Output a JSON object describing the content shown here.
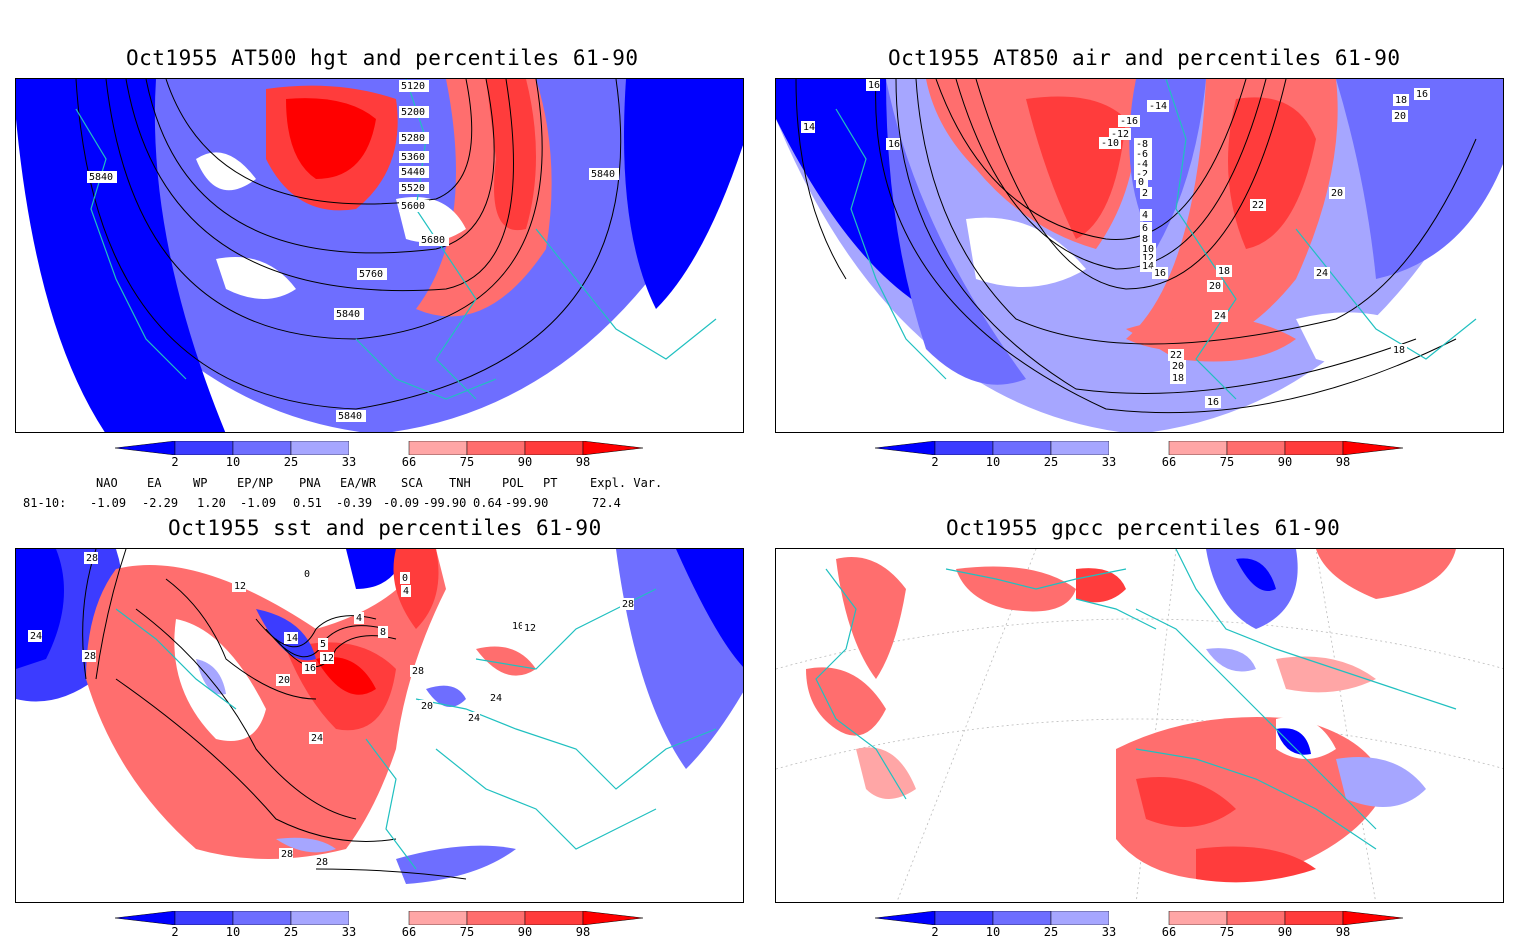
{
  "panels": [
    {
      "title": "Oct1955 AT500 hgt and percentiles 61-90",
      "contour_labels": [
        "5120",
        "5200",
        "5280",
        "5360",
        "5440",
        "5520",
        "5600",
        "5680",
        "5760",
        "5840",
        "5840",
        "5840",
        "5840",
        "5840"
      ]
    },
    {
      "title": "Oct1955 AT850 air and percentiles 61-90",
      "contour_labels": [
        "16",
        "14",
        "16",
        "-16",
        "-14",
        "-12",
        "-10",
        "-8",
        "-6",
        "-4",
        "-2",
        "0",
        "2",
        "4",
        "6",
        "8",
        "10",
        "12",
        "14",
        "16",
        "18",
        "20",
        "22",
        "24",
        "24",
        "22",
        "20",
        "18",
        "16",
        "18",
        "20",
        "20",
        "22",
        "16",
        "18"
      ]
    },
    {
      "title": "Oct1955 sst and percentiles 61-90",
      "contour_labels": [
        "28",
        "24",
        "28",
        "12",
        "0",
        "0",
        "4",
        "4",
        "8",
        "5",
        "14",
        "12",
        "16",
        "20",
        "24",
        "28",
        "28",
        "20",
        "24",
        "24",
        "28",
        "10",
        "12",
        "28"
      ]
    },
    {
      "title": "Oct1955 gpcc percentiles 61-90",
      "contour_labels": []
    }
  ],
  "colorbar": {
    "ticks": [
      "2",
      "10",
      "25",
      "33",
      "66",
      "75",
      "90",
      "98"
    ],
    "colors": [
      "#0000ff",
      "#3c3cff",
      "#6e6eff",
      "#a6a6ff",
      "#ffffff",
      "#ffa6a6",
      "#ff6e6e",
      "#ff3c3c",
      "#ff0000"
    ]
  },
  "teleconnections": {
    "headers": [
      "NAO",
      "EA",
      "WP",
      "EP/NP",
      "PNA",
      "EA/WR",
      "SCA",
      "TNH",
      "POL",
      "PT",
      "Expl. Var."
    ],
    "row_label": "81-10:",
    "values": [
      "-1.09",
      "-2.29",
      "1.20",
      "-1.09",
      "0.51",
      "-0.39",
      "-0.09",
      "-99.90",
      "0.64",
      "-99.90",
      "72.4"
    ]
  },
  "colors": {
    "coast": "#20c0c0",
    "contour": "#000000"
  }
}
